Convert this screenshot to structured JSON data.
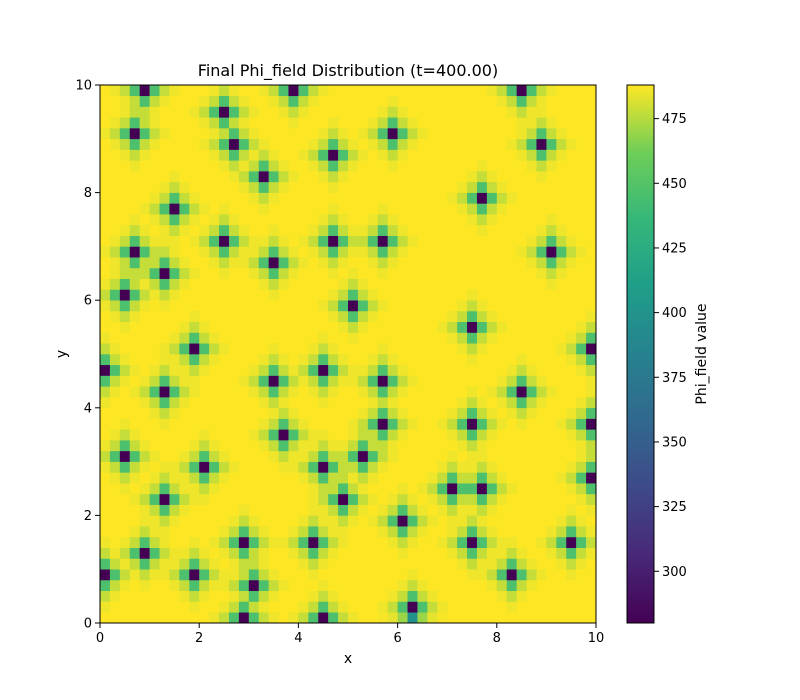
{
  "chart_data": {
    "type": "heatmap",
    "title": "Final Phi_field Distribution (t=400.00)",
    "xlabel": "x",
    "ylabel": "y",
    "xlim": [
      0,
      10
    ],
    "ylim": [
      0,
      10
    ],
    "x_ticks": [
      "0",
      "2",
      "4",
      "6",
      "8",
      "10"
    ],
    "y_ticks": [
      "0",
      "2",
      "4",
      "6",
      "8",
      "10"
    ],
    "grid": false,
    "colormap": "viridis",
    "grid_cells": 50,
    "cell_size": 0.2,
    "background_value": 488,
    "colorbar": {
      "label": "Phi_field value",
      "vmin": 280,
      "vmax": 488,
      "ticks": [
        "300",
        "325",
        "350",
        "375",
        "400",
        "425",
        "450",
        "475"
      ]
    },
    "minima": [
      {
        "x": 0.9,
        "y": 9.9,
        "value": 280
      },
      {
        "x": 2.5,
        "y": 9.5,
        "value": 280
      },
      {
        "x": 3.9,
        "y": 9.9,
        "value": 280
      },
      {
        "x": 8.5,
        "y": 9.9,
        "value": 280
      },
      {
        "x": 0.7,
        "y": 9.1,
        "value": 280
      },
      {
        "x": 2.7,
        "y": 8.9,
        "value": 280
      },
      {
        "x": 4.7,
        "y": 8.7,
        "value": 280
      },
      {
        "x": 5.9,
        "y": 9.1,
        "value": 280
      },
      {
        "x": 8.9,
        "y": 8.9,
        "value": 280
      },
      {
        "x": 3.3,
        "y": 8.3,
        "value": 280
      },
      {
        "x": 7.7,
        "y": 7.9,
        "value": 280
      },
      {
        "x": 1.5,
        "y": 7.7,
        "value": 280
      },
      {
        "x": 0.7,
        "y": 6.9,
        "value": 280
      },
      {
        "x": 2.5,
        "y": 7.1,
        "value": 280
      },
      {
        "x": 4.7,
        "y": 7.1,
        "value": 280
      },
      {
        "x": 5.7,
        "y": 7.1,
        "value": 280
      },
      {
        "x": 9.1,
        "y": 6.9,
        "value": 280
      },
      {
        "x": 3.5,
        "y": 6.7,
        "value": 280
      },
      {
        "x": 1.3,
        "y": 6.5,
        "value": 280
      },
      {
        "x": 0.5,
        "y": 6.1,
        "value": 280
      },
      {
        "x": 5.1,
        "y": 5.9,
        "value": 280
      },
      {
        "x": 7.5,
        "y": 5.5,
        "value": 280
      },
      {
        "x": 1.9,
        "y": 5.1,
        "value": 280
      },
      {
        "x": 9.9,
        "y": 5.1,
        "value": 280
      },
      {
        "x": 0.1,
        "y": 4.7,
        "value": 280
      },
      {
        "x": 4.5,
        "y": 4.7,
        "value": 280
      },
      {
        "x": 3.5,
        "y": 4.5,
        "value": 280
      },
      {
        "x": 5.7,
        "y": 4.5,
        "value": 280
      },
      {
        "x": 1.3,
        "y": 4.3,
        "value": 280
      },
      {
        "x": 8.5,
        "y": 4.3,
        "value": 280
      },
      {
        "x": 5.7,
        "y": 3.7,
        "value": 280
      },
      {
        "x": 7.5,
        "y": 3.7,
        "value": 280
      },
      {
        "x": 9.9,
        "y": 3.7,
        "value": 280
      },
      {
        "x": 3.7,
        "y": 3.5,
        "value": 280
      },
      {
        "x": 0.5,
        "y": 3.1,
        "value": 280
      },
      {
        "x": 5.3,
        "y": 3.1,
        "value": 280
      },
      {
        "x": 2.1,
        "y": 2.9,
        "value": 280
      },
      {
        "x": 4.5,
        "y": 2.9,
        "value": 280
      },
      {
        "x": 9.9,
        "y": 2.7,
        "value": 280
      },
      {
        "x": 7.1,
        "y": 2.5,
        "value": 280
      },
      {
        "x": 7.7,
        "y": 2.5,
        "value": 280
      },
      {
        "x": 1.3,
        "y": 2.3,
        "value": 280
      },
      {
        "x": 4.9,
        "y": 2.3,
        "value": 280
      },
      {
        "x": 6.1,
        "y": 1.9,
        "value": 280
      },
      {
        "x": 2.9,
        "y": 1.5,
        "value": 280
      },
      {
        "x": 4.3,
        "y": 1.5,
        "value": 280
      },
      {
        "x": 7.5,
        "y": 1.5,
        "value": 280
      },
      {
        "x": 9.5,
        "y": 1.5,
        "value": 280
      },
      {
        "x": 0.9,
        "y": 1.3,
        "value": 280
      },
      {
        "x": 0.1,
        "y": 0.9,
        "value": 280
      },
      {
        "x": 1.9,
        "y": 0.9,
        "value": 280
      },
      {
        "x": 8.3,
        "y": 0.9,
        "value": 280
      },
      {
        "x": 3.1,
        "y": 0.7,
        "value": 280
      },
      {
        "x": 6.3,
        "y": 0.3,
        "value": 280
      },
      {
        "x": 2.9,
        "y": 0.1,
        "value": 280
      },
      {
        "x": 4.5,
        "y": 0.1,
        "value": 280
      },
      {
        "x": 6.3,
        "y": 0.1,
        "value": 400
      }
    ]
  }
}
